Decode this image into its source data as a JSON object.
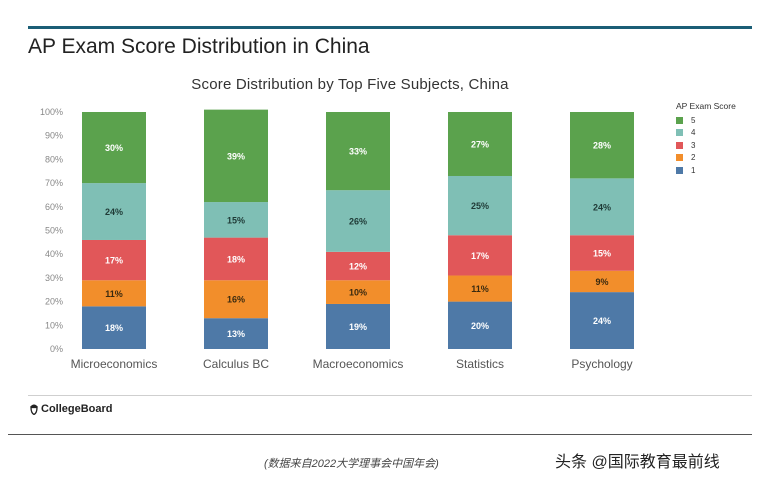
{
  "page": {
    "title": "AP Exam Score Distribution in China",
    "logo_text": "CollegeBoard",
    "source_note": "(数据来自2022大学理事会中国年会)",
    "watermark": "头条 @国际教育最前线"
  },
  "legend": {
    "title": "AP Exam Score",
    "items": [
      {
        "label": "5",
        "color": "#5ba24d"
      },
      {
        "label": "4",
        "color": "#7fbfb5"
      },
      {
        "label": "3",
        "color": "#e15759"
      },
      {
        "label": "2",
        "color": "#f28e2b"
      },
      {
        "label": "1",
        "color": "#4e79a7"
      }
    ]
  },
  "chart_data": {
    "type": "bar",
    "stacked": true,
    "title": "Score Distribution by Top Five Subjects, China",
    "xlabel": "",
    "ylabel": "",
    "ylim": [
      0,
      100
    ],
    "yticks": [
      "0%",
      "10%",
      "20%",
      "30%",
      "40%",
      "50%",
      "60%",
      "70%",
      "80%",
      "90%",
      "100%"
    ],
    "categories": [
      "Microeconomics",
      "Calculus BC",
      "Macroeconomics",
      "Statistics",
      "Psychology"
    ],
    "series": [
      {
        "name": "1",
        "color": "#4e79a7",
        "values": [
          18,
          13,
          19,
          20,
          24
        ]
      },
      {
        "name": "2",
        "color": "#f28e2b",
        "values": [
          11,
          16,
          10,
          11,
          9
        ]
      },
      {
        "name": "3",
        "color": "#e15759",
        "values": [
          17,
          18,
          12,
          17,
          15
        ]
      },
      {
        "name": "4",
        "color": "#7fbfb5",
        "values": [
          24,
          15,
          26,
          25,
          24
        ]
      },
      {
        "name": "5",
        "color": "#5ba24d",
        "values": [
          30,
          39,
          33,
          27,
          28
        ]
      }
    ]
  }
}
